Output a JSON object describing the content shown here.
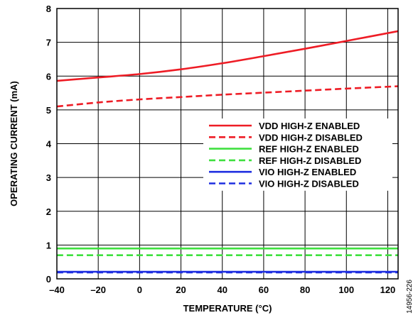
{
  "chart_data": {
    "type": "line",
    "xlabel": "TEMPERATURE (°C)",
    "ylabel": "OPERATING CURRENT (mA)",
    "xlim": [
      -40,
      125
    ],
    "ylim": [
      0,
      8
    ],
    "x_ticks": [
      -40,
      -20,
      0,
      20,
      40,
      60,
      80,
      100,
      120
    ],
    "x_tick_labels": [
      "–40",
      "–20",
      "0",
      "20",
      "40",
      "60",
      "80",
      "100",
      "120"
    ],
    "y_ticks": [
      0,
      1,
      2,
      3,
      4,
      5,
      6,
      7,
      8
    ],
    "y_tick_labels": [
      "0",
      "1",
      "2",
      "3",
      "4",
      "5",
      "6",
      "7",
      "8"
    ],
    "grid": true,
    "legend_position": "right",
    "x": [
      -40,
      -20,
      0,
      20,
      40,
      60,
      80,
      100,
      125
    ],
    "series": [
      {
        "name": "VDD HIGH-Z ENABLED",
        "color": "#ee1c25",
        "dash": "solid",
        "values": [
          5.86,
          5.96,
          6.06,
          6.2,
          6.38,
          6.59,
          6.81,
          7.04,
          7.33
        ]
      },
      {
        "name": "VDD HIGH-Z DISABLED",
        "color": "#ee1c25",
        "dash": "dashed",
        "values": [
          5.1,
          5.22,
          5.31,
          5.38,
          5.45,
          5.51,
          5.57,
          5.63,
          5.7
        ]
      },
      {
        "name": "REF HIGH-Z ENABLED",
        "color": "#3fe03f",
        "dash": "solid",
        "values": [
          0.9,
          0.9,
          0.9,
          0.9,
          0.9,
          0.9,
          0.9,
          0.9,
          0.9
        ]
      },
      {
        "name": "REF HIGH-Z DISABLED",
        "color": "#3fe03f",
        "dash": "dashed",
        "values": [
          0.7,
          0.7,
          0.7,
          0.7,
          0.7,
          0.7,
          0.7,
          0.7,
          0.7
        ]
      },
      {
        "name": "VIO HIGH-Z ENABLED",
        "color": "#1f2fe0",
        "dash": "solid",
        "values": [
          0.21,
          0.21,
          0.21,
          0.21,
          0.21,
          0.21,
          0.21,
          0.21,
          0.21
        ]
      },
      {
        "name": "VIO HIGH-Z DISABLED",
        "color": "#1f2fe0",
        "dash": "dashed",
        "values": [
          0.19,
          0.19,
          0.19,
          0.19,
          0.19,
          0.19,
          0.19,
          0.19,
          0.19
        ]
      }
    ],
    "figure_id": "14956-226"
  }
}
